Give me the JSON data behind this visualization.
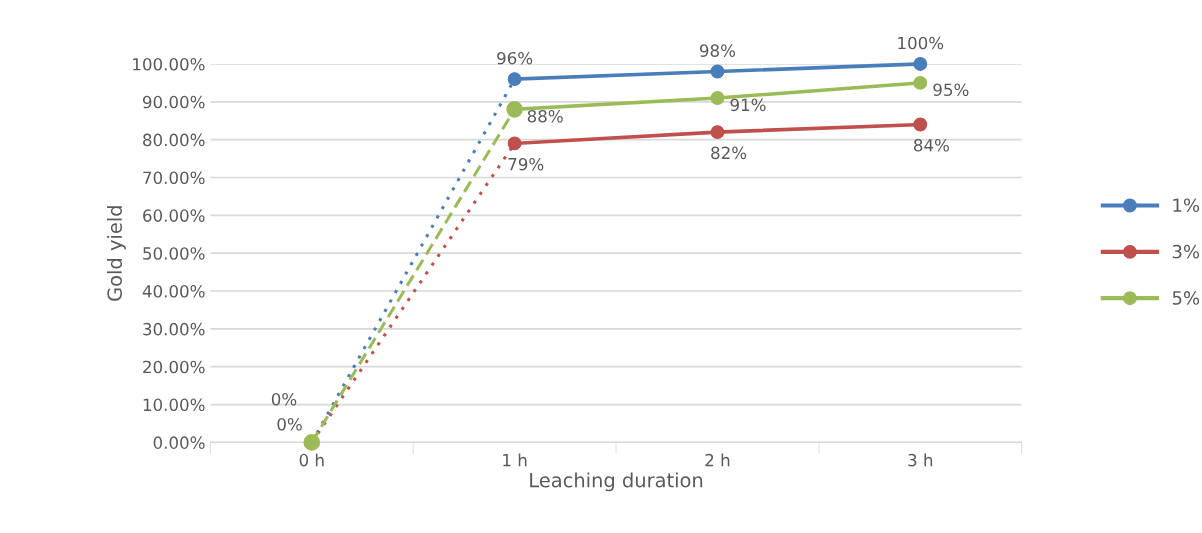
{
  "chart_data": {
    "type": "line",
    "xlabel": "Leaching duration",
    "ylabel": "Gold yield",
    "categories": [
      "0 h",
      "1 h",
      "2 h",
      "3 h"
    ],
    "series": [
      {
        "name": "1%",
        "color": "#4a7ebb",
        "values": [
          null,
          96,
          98,
          100
        ],
        "value_labels": [
          null,
          "96%",
          "98%",
          "100%"
        ],
        "marker": "circle",
        "line_style": "solid"
      },
      {
        "name": "3%",
        "color": "#c0504d",
        "values": [
          null,
          79,
          82,
          84
        ],
        "value_labels": [
          null,
          "79%",
          "82%",
          "84%"
        ],
        "marker": "circle",
        "line_style": "solid"
      },
      {
        "name": "5%",
        "color": "#9bbb59",
        "values": [
          null,
          88,
          91,
          95
        ],
        "value_labels": [
          null,
          "88%",
          "91%",
          "95%"
        ],
        "marker": "circle",
        "line_style": "solid"
      },
      {
        "color": "#4a7ebb",
        "values": [
          0,
          96,
          null,
          null
        ],
        "value_labels": [
          "0%",
          null,
          null,
          null
        ],
        "marker": "none",
        "line_style": "dotted"
      },
      {
        "color": "#c0504d",
        "values": [
          0,
          79,
          null,
          null
        ],
        "marker": "none",
        "line_style": "dotted"
      },
      {
        "color": "#9bbb59",
        "values": [
          0,
          88,
          null,
          null
        ],
        "value_labels": [
          "0%",
          null,
          null,
          null
        ],
        "marker": "circle",
        "line_style": "dashed"
      }
    ],
    "ylim": [
      0,
      100
    ],
    "yticks": [
      {
        "value": 0,
        "label": "0.00%"
      },
      {
        "value": 10,
        "label": "10.00%"
      },
      {
        "value": 20,
        "label": "20.00%"
      },
      {
        "value": 30,
        "label": "30.00%"
      },
      {
        "value": 40,
        "label": "40.00%"
      },
      {
        "value": 50,
        "label": "50.00%"
      },
      {
        "value": 60,
        "label": "60.00%"
      },
      {
        "value": 70,
        "label": "70.00%"
      },
      {
        "value": 80,
        "label": "80.00%"
      },
      {
        "value": 90,
        "label": "90.00%"
      },
      {
        "value": 100,
        "label": "100.00%"
      }
    ],
    "grid": "y",
    "legend": "right"
  }
}
